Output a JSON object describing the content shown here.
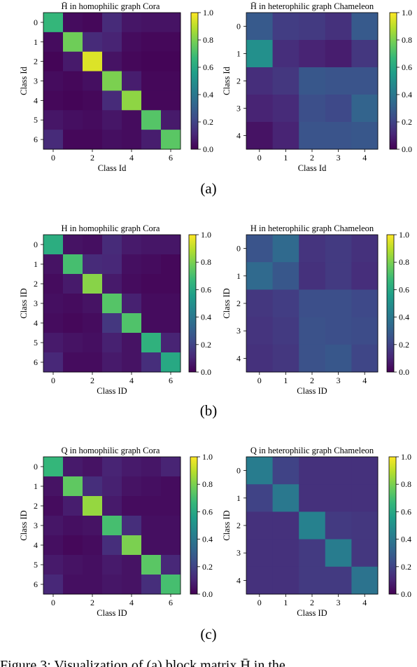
{
  "chart_data": [
    {
      "type": "heatmap",
      "title": "H̄ in homophilic graph Cora",
      "xlabel": "Class Id",
      "ylabel": "Class Id",
      "n": 7,
      "xticks": [
        "0",
        "2",
        "4",
        "6"
      ],
      "yticks": [
        "0",
        "1",
        "2",
        "3",
        "4",
        "5",
        "6"
      ],
      "colorbar_ticks": [
        "0.0",
        "0.2",
        "0.4",
        "0.6",
        "0.8",
        "1.0"
      ],
      "vmin": 0.0,
      "vmax": 1.0,
      "colormap": "viridis",
      "values": [
        [
          0.66,
          0.03,
          0.02,
          0.12,
          0.06,
          0.05,
          0.05
        ],
        [
          0.03,
          0.78,
          0.12,
          0.1,
          0.03,
          0.02,
          0.02
        ],
        [
          0.01,
          0.07,
          0.95,
          0.05,
          0.02,
          0.01,
          0.01
        ],
        [
          0.03,
          0.02,
          0.04,
          0.8,
          0.08,
          0.02,
          0.02
        ],
        [
          0.02,
          0.01,
          0.02,
          0.12,
          0.83,
          0.02,
          0.02
        ],
        [
          0.06,
          0.04,
          0.03,
          0.06,
          0.03,
          0.73,
          0.07
        ],
        [
          0.12,
          0.02,
          0.02,
          0.04,
          0.03,
          0.08,
          0.74
        ]
      ]
    },
    {
      "type": "heatmap",
      "title": "H̄ in heterophilic graph Chameleon",
      "xlabel": "Class Id",
      "ylabel": "Class Id",
      "n": 5,
      "xticks": [
        "0",
        "1",
        "2",
        "3",
        "4"
      ],
      "yticks": [
        "0",
        "1",
        "2",
        "3",
        "4"
      ],
      "colorbar_ticks": [
        "0.0",
        "0.2",
        "0.4",
        "0.6",
        "0.8",
        "1.0"
      ],
      "vmin": 0.0,
      "vmax": 1.0,
      "colormap": "viridis",
      "values": [
        [
          0.28,
          0.18,
          0.17,
          0.14,
          0.28
        ],
        [
          0.5,
          0.13,
          0.1,
          0.08,
          0.16
        ],
        [
          0.13,
          0.16,
          0.27,
          0.26,
          0.26
        ],
        [
          0.1,
          0.12,
          0.24,
          0.22,
          0.32
        ],
        [
          0.05,
          0.1,
          0.26,
          0.26,
          0.27
        ]
      ]
    },
    {
      "type": "heatmap",
      "title": "H in homophilic graph Cora",
      "xlabel": "Class ID",
      "ylabel": "Class ID",
      "n": 7,
      "xticks": [
        "0",
        "2",
        "4",
        "6"
      ],
      "yticks": [
        "0",
        "1",
        "2",
        "3",
        "4",
        "5",
        "6"
      ],
      "colorbar_ticks": [
        "0.0",
        "0.2",
        "0.4",
        "0.6",
        "0.8",
        "1.0"
      ],
      "vmin": 0.0,
      "vmax": 1.0,
      "colormap": "viridis",
      "values": [
        [
          0.62,
          0.05,
          0.04,
          0.12,
          0.07,
          0.06,
          0.06
        ],
        [
          0.05,
          0.7,
          0.12,
          0.11,
          0.04,
          0.03,
          0.02
        ],
        [
          0.03,
          0.07,
          0.82,
          0.07,
          0.03,
          0.02,
          0.02
        ],
        [
          0.04,
          0.03,
          0.05,
          0.73,
          0.09,
          0.03,
          0.03
        ],
        [
          0.03,
          0.02,
          0.03,
          0.16,
          0.72,
          0.03,
          0.03
        ],
        [
          0.07,
          0.05,
          0.04,
          0.09,
          0.05,
          0.64,
          0.1
        ],
        [
          0.11,
          0.03,
          0.03,
          0.07,
          0.05,
          0.13,
          0.6
        ]
      ]
    },
    {
      "type": "heatmap",
      "title": "H in heterophilic graph Chameleon",
      "xlabel": "Class ID",
      "ylabel": "Class ID",
      "n": 5,
      "xticks": [
        "0",
        "1",
        "2",
        "3",
        "4"
      ],
      "yticks": [
        "0",
        "1",
        "2",
        "3",
        "4"
      ],
      "colorbar_ticks": [
        "0.0",
        "0.2",
        "0.4",
        "0.6",
        "0.8",
        "1.0"
      ],
      "vmin": 0.0,
      "vmax": 1.0,
      "colormap": "viridis",
      "values": [
        [
          0.26,
          0.34,
          0.15,
          0.17,
          0.14
        ],
        [
          0.34,
          0.27,
          0.14,
          0.17,
          0.13
        ],
        [
          0.16,
          0.18,
          0.24,
          0.24,
          0.22
        ],
        [
          0.15,
          0.17,
          0.25,
          0.24,
          0.23
        ],
        [
          0.14,
          0.16,
          0.25,
          0.27,
          0.21
        ]
      ]
    },
    {
      "type": "heatmap",
      "title": "Q in homophilic graph Cora",
      "xlabel": "Class ID",
      "ylabel": "Class ID",
      "n": 7,
      "xticks": [
        "0",
        "2",
        "4",
        "6"
      ],
      "yticks": [
        "0",
        "1",
        "2",
        "3",
        "4",
        "5",
        "6"
      ],
      "colorbar_ticks": [
        "0.0",
        "0.2",
        "0.4",
        "0.6",
        "0.8",
        "1.0"
      ],
      "vmin": 0.0,
      "vmax": 1.0,
      "colormap": "viridis",
      "values": [
        [
          0.66,
          0.07,
          0.05,
          0.1,
          0.07,
          0.06,
          0.1
        ],
        [
          0.05,
          0.75,
          0.13,
          0.09,
          0.05,
          0.04,
          0.03
        ],
        [
          0.03,
          0.08,
          0.84,
          0.07,
          0.03,
          0.03,
          0.03
        ],
        [
          0.06,
          0.04,
          0.05,
          0.7,
          0.13,
          0.04,
          0.04
        ],
        [
          0.04,
          0.02,
          0.03,
          0.13,
          0.8,
          0.04,
          0.04
        ],
        [
          0.07,
          0.05,
          0.04,
          0.07,
          0.05,
          0.74,
          0.11
        ],
        [
          0.11,
          0.04,
          0.04,
          0.06,
          0.05,
          0.13,
          0.7
        ]
      ]
    },
    {
      "type": "heatmap",
      "title": "Q in heterophilic graph Chameleon",
      "xlabel": "Class ID",
      "ylabel": "Class ID",
      "n": 5,
      "xticks": [
        "0",
        "1",
        "2",
        "3",
        "4"
      ],
      "yticks": [
        "0",
        "1",
        "2",
        "3",
        "4"
      ],
      "colorbar_ticks": [
        "0.0",
        "0.2",
        "0.4",
        "0.6",
        "0.8",
        "1.0"
      ],
      "vmin": 0.0,
      "vmax": 1.0,
      "colormap": "viridis",
      "values": [
        [
          0.42,
          0.2,
          0.14,
          0.14,
          0.14
        ],
        [
          0.2,
          0.4,
          0.14,
          0.14,
          0.14
        ],
        [
          0.14,
          0.14,
          0.44,
          0.17,
          0.16
        ],
        [
          0.14,
          0.14,
          0.17,
          0.42,
          0.16
        ],
        [
          0.14,
          0.14,
          0.17,
          0.17,
          0.38
        ]
      ]
    }
  ],
  "captions": [
    "(a)",
    "(b)",
    "(c)"
  ],
  "bottom_text": "Figure 3: Visualization of (a) block matrix H̄ in the"
}
